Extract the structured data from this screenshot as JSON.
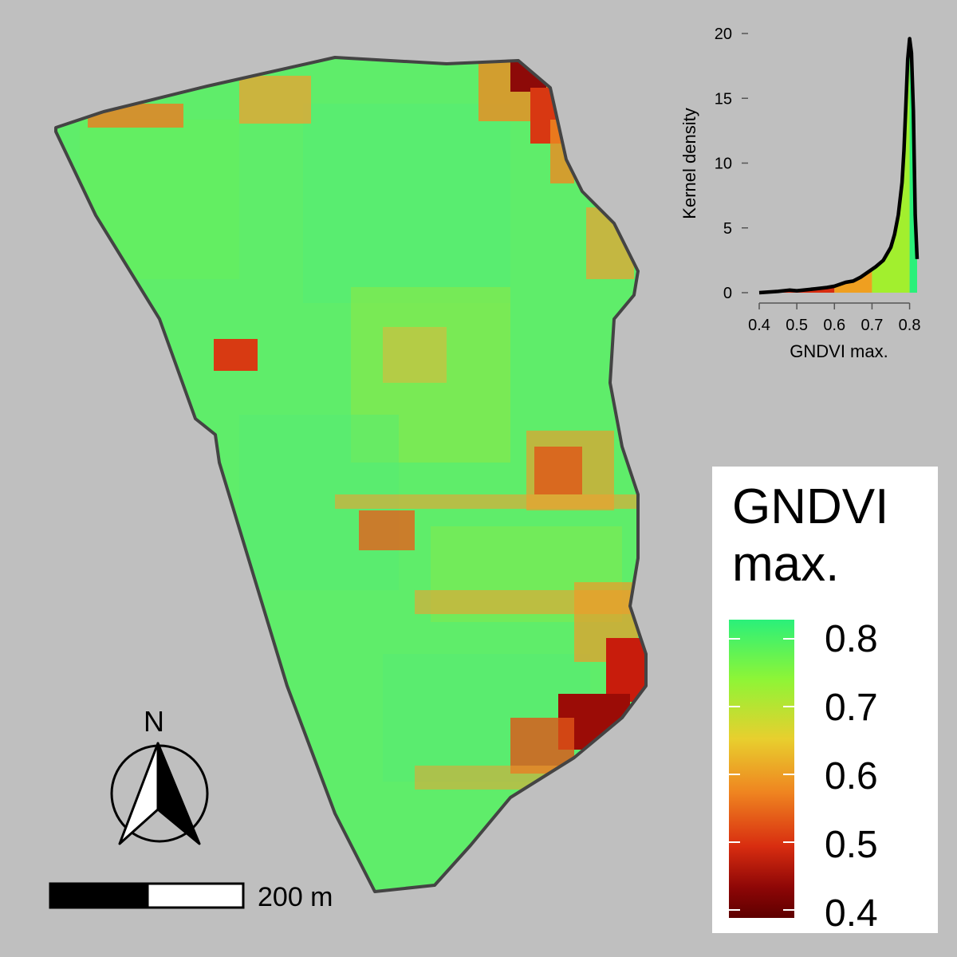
{
  "map": {
    "legend": {
      "title_line1": "GNDVI",
      "title_line2": "max.",
      "ticks": [
        "0.8",
        "0.7",
        "0.6",
        "0.5",
        "0.4"
      ]
    },
    "north_arrow": {
      "label": "N",
      "icon": "north-arrow-icon"
    },
    "scale_bar": {
      "label": "200 m"
    },
    "colors": {
      "background": "#bfbfbf",
      "high": "#2af07a",
      "mid_high": "#8ef536",
      "mid": "#e8cf2e",
      "mid_low": "#ef8420",
      "low": "#d82d10",
      "very_low": "#5e0000",
      "boundary": "#444444"
    }
  },
  "chart_data": {
    "type": "area",
    "xlabel": "GNDVI max.",
    "ylabel": "Kernel density",
    "xlim": [
      0.39,
      0.83
    ],
    "ylim": [
      0,
      20
    ],
    "x_ticks": [
      "0.4",
      "0.5",
      "0.6",
      "0.7",
      "0.8"
    ],
    "y_ticks": [
      "0",
      "5",
      "10",
      "15",
      "20"
    ],
    "density": {
      "x": [
        0.4,
        0.45,
        0.48,
        0.5,
        0.55,
        0.58,
        0.6,
        0.63,
        0.65,
        0.67,
        0.69,
        0.71,
        0.73,
        0.75,
        0.76,
        0.77,
        0.78,
        0.785,
        0.79,
        0.795,
        0.8,
        0.805,
        0.81,
        0.815,
        0.82
      ],
      "y": [
        0.0,
        0.1,
        0.2,
        0.15,
        0.3,
        0.4,
        0.5,
        0.8,
        0.9,
        1.2,
        1.6,
        2.0,
        2.5,
        3.5,
        4.5,
        6.0,
        8.5,
        11.0,
        14.5,
        18.0,
        19.6,
        18.5,
        14.0,
        6.0,
        2.6
      ]
    },
    "fill_bands": [
      {
        "from": 0.4,
        "to": 0.6,
        "color": "#d82d10"
      },
      {
        "from": 0.6,
        "to": 0.7,
        "color": "#ef9f20"
      },
      {
        "from": 0.7,
        "to": 0.8,
        "color": "#a2ef2e"
      },
      {
        "from": 0.8,
        "to": 0.82,
        "color": "#2af07a"
      }
    ]
  }
}
